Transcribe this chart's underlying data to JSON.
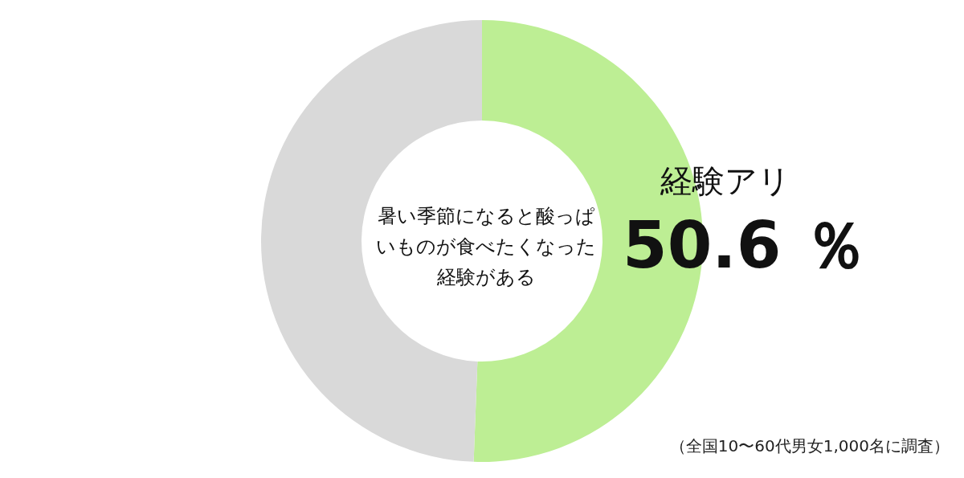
{
  "chart_data": {
    "type": "donut",
    "title": "暑い季節になると酸っぱいものが食べたくなった経験がある",
    "categories": [
      "経験アリ",
      null
    ],
    "values": [
      50.6,
      49.4
    ],
    "colors": [
      "#bdee94",
      "#d9d9d9"
    ],
    "value_labels": [
      "50.6 ％",
      null
    ],
    "annotations": [
      "（全国10〜60代男女1,000名に調査）"
    ],
    "legend": false
  }
}
